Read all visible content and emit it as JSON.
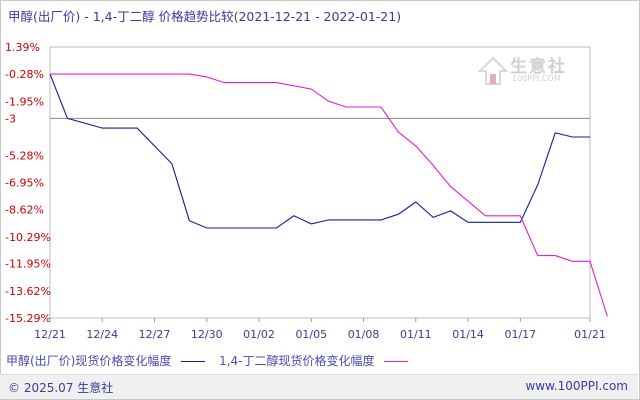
{
  "title": "甲醇(出厂价) - 1,4-丁二醇 价格趋势比较(2021-12-21 - 2022-01-21)",
  "legend": [
    {
      "label": "甲醇(出厂价)现货价格变化幅度",
      "color": "#1a1aa0"
    },
    {
      "label": "1,4-丁二醇现货价格变化幅度",
      "color": "#e020d0"
    }
  ],
  "footer": {
    "left": "© 2025.07 生意社",
    "right": "www.100PPI.com"
  },
  "watermark": {
    "cn": "生意社",
    "en": "100PPI.COM"
  },
  "chart_data": {
    "type": "line",
    "ylim": [
      -15.29,
      1.39
    ],
    "y_ticks": [
      "1.39%",
      "-0.28%",
      "-1.95%",
      "-3",
      "-5.28%",
      "-6.95%",
      "-8.62%",
      "-10.29%",
      "-11.95%",
      "-13.62%",
      "-15.29%"
    ],
    "y_tick_values": [
      1.39,
      -0.28,
      -1.95,
      -3,
      -5.28,
      -6.95,
      -8.62,
      -10.29,
      -11.95,
      -13.62,
      -15.29
    ],
    "reference_line": -3,
    "x_ticks": [
      "12/21",
      "12/24",
      "12/27",
      "12/30",
      "01/02",
      "01/05",
      "01/08",
      "01/11",
      "01/14",
      "01/17",
      "01/21"
    ],
    "x_tick_values": [
      0,
      3,
      6,
      9,
      12,
      15,
      18,
      21,
      24,
      27,
      31
    ],
    "x_range": [
      0,
      31
    ],
    "series": [
      {
        "name": "甲醇(出厂价)现货价格变化幅度",
        "color": "#1a1aa0",
        "points": [
          [
            0,
            -0.28
          ],
          [
            1,
            -3
          ],
          [
            3,
            -3.6
          ],
          [
            5,
            -3.6
          ],
          [
            7,
            -5.8
          ],
          [
            8,
            -9.3
          ],
          [
            9,
            -9.75
          ],
          [
            12,
            -9.75
          ],
          [
            13,
            -9.75
          ],
          [
            14,
            -9.0
          ],
          [
            15,
            -9.5
          ],
          [
            16,
            -9.25
          ],
          [
            18,
            -9.25
          ],
          [
            19,
            -9.25
          ],
          [
            20,
            -8.9
          ],
          [
            21,
            -8.15
          ],
          [
            22,
            -9.1
          ],
          [
            23,
            -8.7
          ],
          [
            24,
            -9.4
          ],
          [
            27,
            -9.4
          ],
          [
            28,
            -7.1
          ],
          [
            29,
            -3.9
          ],
          [
            30,
            -4.15
          ],
          [
            31,
            -4.15
          ]
        ]
      },
      {
        "name": "1,4-丁二醇现货价格变化幅度",
        "color": "#e020d0",
        "points": [
          [
            0,
            -0.28
          ],
          [
            7,
            -0.28
          ],
          [
            8,
            -0.28
          ],
          [
            9,
            -0.45
          ],
          [
            10,
            -0.8
          ],
          [
            13,
            -0.8
          ],
          [
            15,
            -1.2
          ],
          [
            16,
            -1.95
          ],
          [
            17,
            -2.3
          ],
          [
            19,
            -2.3
          ],
          [
            20,
            -3.85
          ],
          [
            21,
            -4.7
          ],
          [
            22,
            -5.9
          ],
          [
            23,
            -7.2
          ],
          [
            24,
            -8.1
          ],
          [
            25,
            -9.0
          ],
          [
            26,
            -9.0
          ],
          [
            27,
            -9.0
          ],
          [
            28,
            -11.45
          ],
          [
            29,
            -11.45
          ],
          [
            30,
            -11.8
          ],
          [
            31,
            -11.8
          ],
          [
            32,
            -15.2
          ]
        ]
      }
    ]
  }
}
